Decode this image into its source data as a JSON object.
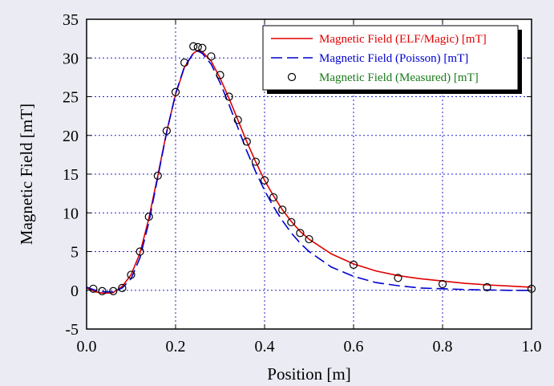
{
  "chart_data": {
    "type": "line",
    "xlabel": "Position [m]",
    "ylabel": "Magnetic Field [mT]",
    "xlim": [
      0.0,
      1.0
    ],
    "ylim": [
      -5,
      35
    ],
    "xticks": [
      0.0,
      0.2,
      0.4,
      0.6,
      0.8,
      1.0
    ],
    "xtick_labels": [
      "0.0",
      "0.2",
      "0.4",
      "0.6",
      "0.8",
      "1.0"
    ],
    "yticks": [
      -5,
      0,
      5,
      10,
      15,
      20,
      25,
      30,
      35
    ],
    "ytick_labels": [
      "-5",
      "0",
      "5",
      "10",
      "15",
      "20",
      "25",
      "30",
      "35"
    ],
    "grid": true,
    "legend_position": "top-right",
    "colors": {
      "background": "#ebebf4",
      "plot_bg": "#ffffff",
      "grid": "#2020d0"
    },
    "series": [
      {
        "name": "Magnetic Field (ELF/Magic) [mT]",
        "style": "solid-line",
        "color": "#e00000",
        "x": [
          0.0,
          0.02,
          0.04,
          0.06,
          0.08,
          0.1,
          0.12,
          0.14,
          0.16,
          0.18,
          0.2,
          0.22,
          0.24,
          0.25,
          0.26,
          0.28,
          0.3,
          0.32,
          0.34,
          0.36,
          0.38,
          0.4,
          0.42,
          0.44,
          0.46,
          0.48,
          0.5,
          0.55,
          0.6,
          0.65,
          0.7,
          0.75,
          0.8,
          0.85,
          0.9,
          0.95,
          1.0
        ],
        "y": [
          0.3,
          -0.2,
          -0.4,
          -0.3,
          0.5,
          2.0,
          4.8,
          9.3,
          14.8,
          20.5,
          25.3,
          28.8,
          30.6,
          31.0,
          30.8,
          29.6,
          27.4,
          24.8,
          22.0,
          19.2,
          16.6,
          14.2,
          12.2,
          10.4,
          8.9,
          7.6,
          6.6,
          4.7,
          3.4,
          2.5,
          1.9,
          1.5,
          1.2,
          0.9,
          0.7,
          0.55,
          0.4
        ]
      },
      {
        "name": "Magnetic Field (Poisson) [mT]",
        "style": "dashed-line",
        "color": "#0000d0",
        "x": [
          0.0,
          0.02,
          0.04,
          0.06,
          0.08,
          0.1,
          0.12,
          0.14,
          0.16,
          0.18,
          0.2,
          0.22,
          0.24,
          0.25,
          0.26,
          0.28,
          0.3,
          0.32,
          0.34,
          0.36,
          0.38,
          0.4,
          0.42,
          0.44,
          0.46,
          0.48,
          0.5,
          0.55,
          0.6,
          0.65,
          0.7,
          0.75,
          0.8,
          0.85,
          0.9,
          0.95,
          1.0
        ],
        "y": [
          0.4,
          0.0,
          -0.2,
          -0.2,
          0.3,
          1.5,
          4.2,
          8.8,
          14.6,
          20.4,
          25.4,
          28.9,
          30.6,
          30.9,
          30.6,
          29.2,
          26.8,
          24.0,
          21.0,
          18.0,
          15.3,
          12.9,
          10.8,
          9.0,
          7.4,
          6.1,
          5.0,
          3.0,
          1.8,
          1.0,
          0.6,
          0.3,
          0.2,
          0.1,
          0.05,
          0.0,
          0.0
        ]
      },
      {
        "name": "Magnetic Field (Measured) [mT]",
        "style": "open-circle-markers",
        "color": "#000000",
        "label_color": "#1a7a1a",
        "x": [
          0.015,
          0.035,
          0.06,
          0.08,
          0.1,
          0.12,
          0.14,
          0.16,
          0.18,
          0.2,
          0.22,
          0.24,
          0.25,
          0.26,
          0.28,
          0.3,
          0.32,
          0.34,
          0.36,
          0.38,
          0.4,
          0.42,
          0.44,
          0.46,
          0.48,
          0.5,
          0.6,
          0.7,
          0.8,
          0.9,
          1.0
        ],
        "y": [
          0.2,
          -0.1,
          -0.1,
          0.3,
          2.0,
          5.0,
          9.5,
          14.8,
          20.6,
          25.6,
          29.4,
          31.5,
          31.4,
          31.3,
          30.2,
          27.8,
          25.0,
          22.0,
          19.2,
          16.6,
          14.2,
          12.0,
          10.4,
          8.8,
          7.4,
          6.6,
          3.3,
          1.6,
          0.8,
          0.4,
          0.2
        ]
      }
    ]
  }
}
